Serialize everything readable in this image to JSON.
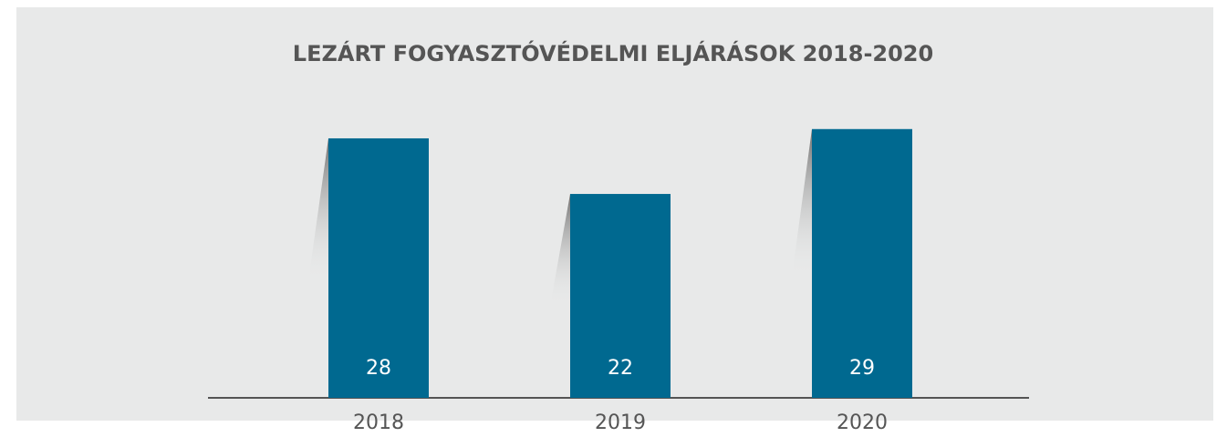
{
  "chart_data": {
    "type": "bar",
    "title": "LEZÁRT FOGYASZTÓVÉDELMI ELJÁRÁSOK 2018-2020",
    "categories": [
      "2018",
      "2019",
      "2020"
    ],
    "values": [
      28,
      22,
      29
    ],
    "color": "#006990"
  }
}
